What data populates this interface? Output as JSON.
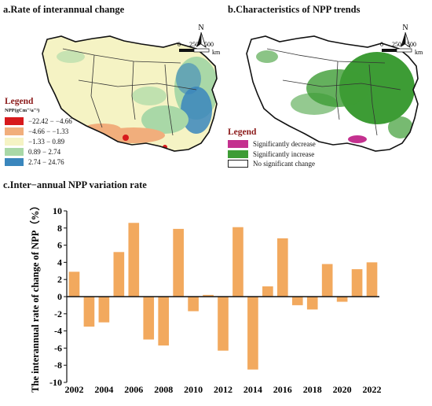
{
  "panels": {
    "a": {
      "title": "a.Rate of interannual change"
    },
    "b": {
      "title": "b.Characteristics of NPP trends"
    },
    "c": {
      "title": "c.Inter−annual NPP variation rate"
    }
  },
  "compass": {
    "letter": "N"
  },
  "scale_bar": {
    "ticks": [
      "0",
      "250",
      "500"
    ],
    "unit": "km"
  },
  "legend_a": {
    "heading": "Legend",
    "unit": "NPP(gCm⁻²a⁻¹)",
    "items": [
      {
        "label": "−22.42 − −4.66",
        "color": "#d7191c"
      },
      {
        "label": "−4.66 − −1.33",
        "color": "#f1ae7c"
      },
      {
        "label": "−1.33 − 0.89",
        "color": "#f5f3c4"
      },
      {
        "label": "0.89 − 2.74",
        "color": "#a9d8a7"
      },
      {
        "label": "2.74 − 24.76",
        "color": "#3a86bd"
      }
    ]
  },
  "legend_b": {
    "heading": "Legend",
    "items": [
      {
        "label": "Significantly decrease",
        "color": "#c4318f"
      },
      {
        "label": "Significantly increase",
        "color": "#3d9c35"
      },
      {
        "label": "No significant change",
        "color": "#ffffff"
      }
    ]
  },
  "chart_data": {
    "type": "bar",
    "title": "c.Inter−annual NPP variation rate",
    "xlabel": "",
    "ylabel": "The interannual rate of change of NPP（%）",
    "categories": [
      "2002",
      "2003",
      "2004",
      "2005",
      "2006",
      "2007",
      "2008",
      "2009",
      "2010",
      "2011",
      "2012",
      "2013",
      "2014",
      "2015",
      "2016",
      "2017",
      "2018",
      "2019",
      "2020",
      "2021",
      "2022"
    ],
    "values": [
      2.9,
      -3.5,
      -3.0,
      5.2,
      8.6,
      -5.0,
      -5.7,
      7.9,
      -1.7,
      0.2,
      -6.3,
      8.1,
      -8.5,
      1.2,
      6.8,
      -1.0,
      -1.5,
      3.8,
      -0.6,
      3.2,
      4.0
    ],
    "x_tick_labels": [
      "2002",
      "2004",
      "2006",
      "2008",
      "2010",
      "2012",
      "2014",
      "2016",
      "2018",
      "2020",
      "2022"
    ],
    "y_ticks": [
      10,
      8,
      6,
      4,
      2,
      0,
      -2,
      -4,
      -6,
      -8,
      -10
    ],
    "ylim": [
      -10,
      10
    ],
    "bar_color": "#f2a95e",
    "grid": false,
    "legend": "none"
  }
}
